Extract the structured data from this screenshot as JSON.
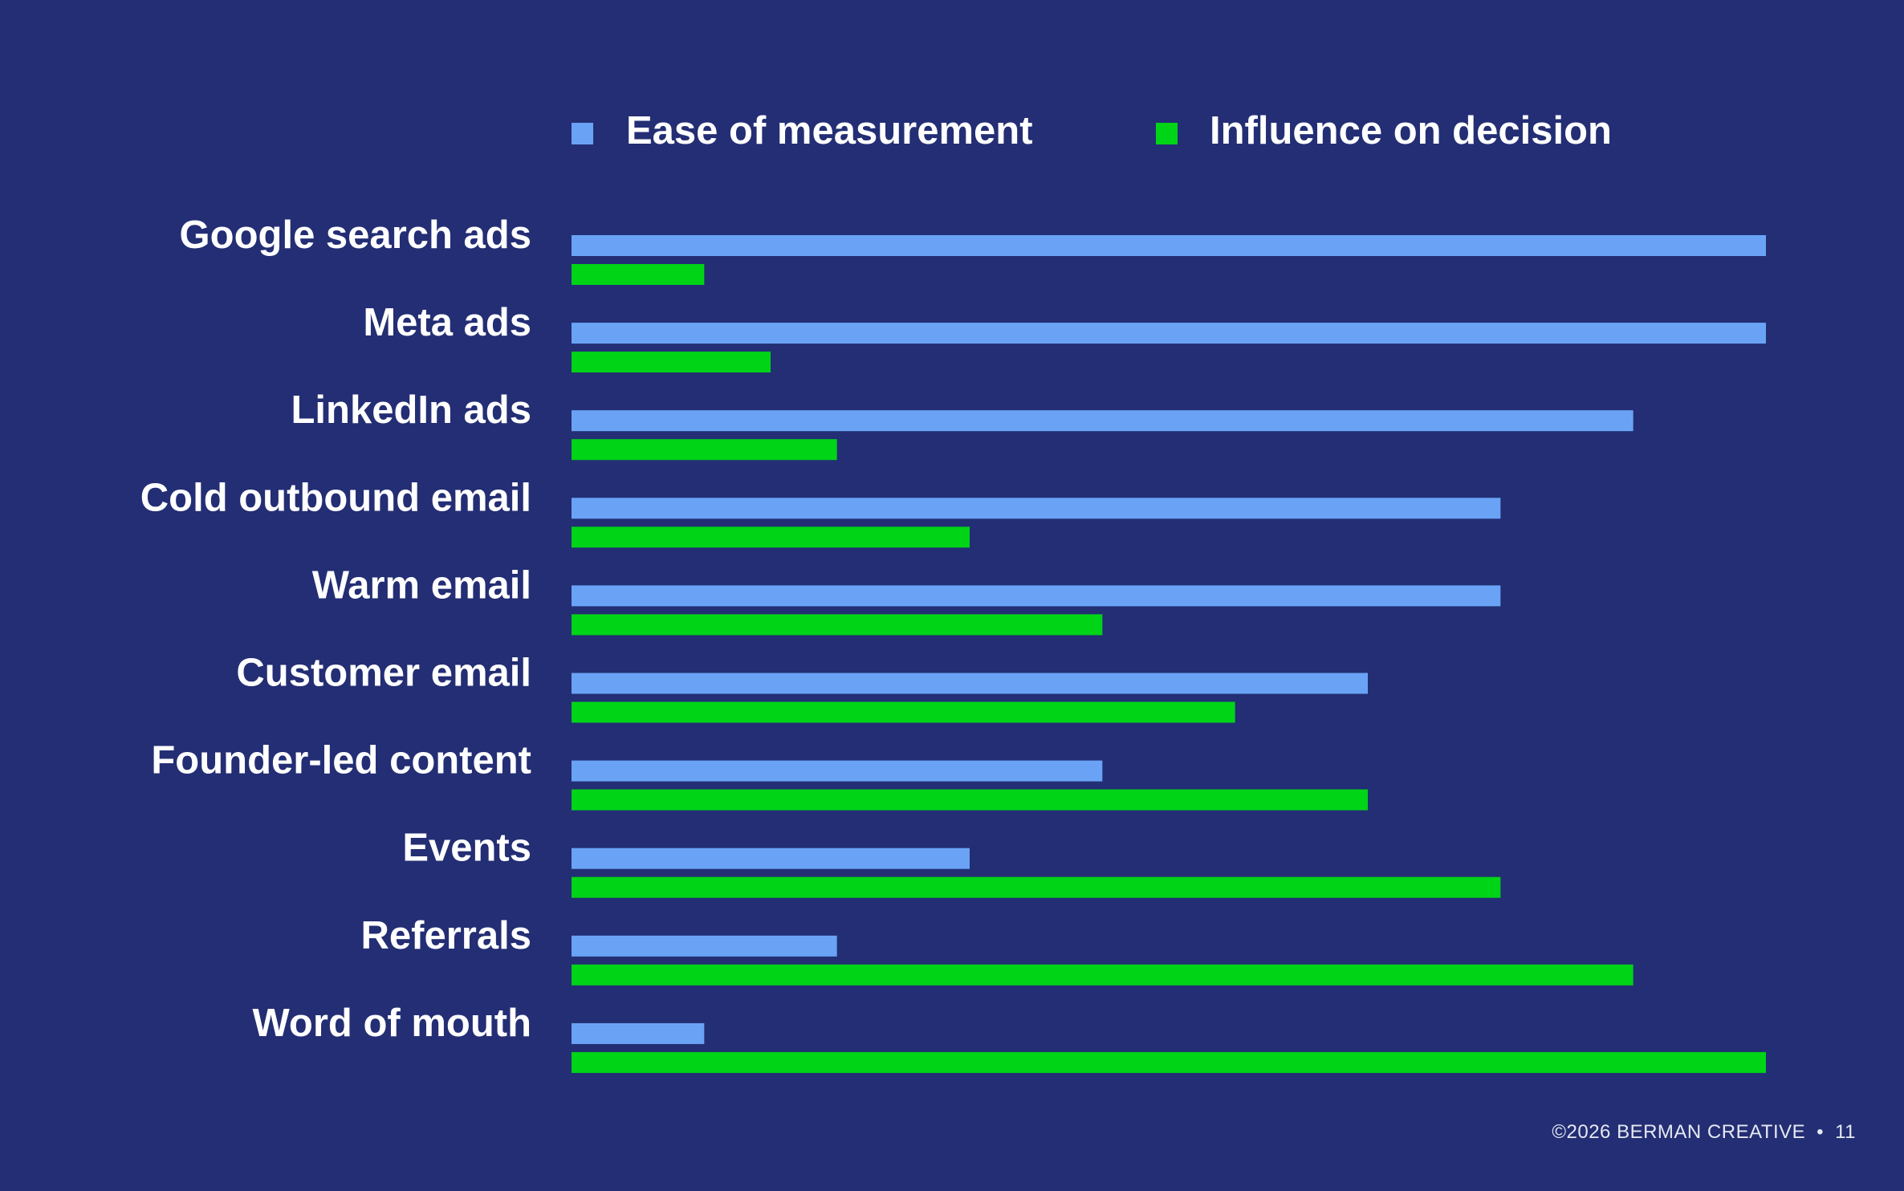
{
  "colors": {
    "background": "#232e74",
    "ease": "#6aa3f5",
    "influence": "#00d417",
    "text": "#ffffff"
  },
  "chart_data": {
    "type": "bar",
    "orientation": "horizontal",
    "categories": [
      "Google search ads",
      "Meta ads",
      "LinkedIn ads",
      "Cold outbound email",
      "Warm email",
      "Customer email",
      "Founder-led content",
      "Events",
      "Referrals",
      "Word of mouth"
    ],
    "series": [
      {
        "name": "Ease of measurement",
        "color": "#6aa3f5",
        "values": [
          9,
          9,
          8,
          7,
          7,
          6,
          4,
          3,
          2,
          1
        ]
      },
      {
        "name": "Influence on decision",
        "color": "#00d417",
        "values": [
          1,
          1.5,
          2,
          3,
          4,
          5,
          6,
          7,
          8,
          9
        ]
      }
    ],
    "xlim": [
      0,
      9
    ],
    "grid": false,
    "axes_visible": false,
    "legend_position": "top"
  },
  "footer": {
    "copyright": "©2026 BERMAN CREATIVE",
    "separator": "•",
    "page_number": "11"
  }
}
